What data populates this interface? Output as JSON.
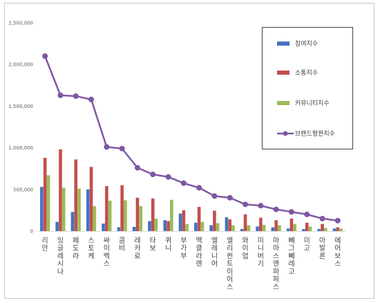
{
  "chart_data": {
    "type": "bar",
    "categories": [
      "리안",
      "잉글레시나",
      "페도라",
      "스토케",
      "싸이벡스",
      "콤비",
      "레카로",
      "타보",
      "퀴니",
      "부가부",
      "맥클라렌",
      "엘레니어",
      "엘리펀트이어스",
      "와이업",
      "미니버기",
      "마마스앤파파스",
      "뻬그뻬레고",
      "미고",
      "아발론",
      "에어보스"
    ],
    "series": [
      {
        "name": "참여지수",
        "color": "#4472c4",
        "values": [
          530000,
          110000,
          230000,
          500000,
          90000,
          45000,
          50000,
          120000,
          130000,
          210000,
          100000,
          70000,
          165000,
          25000,
          55000,
          45000,
          30000,
          25000,
          25000,
          30000
        ]
      },
      {
        "name": "소통지수",
        "color": "#c0504d",
        "values": [
          880000,
          980000,
          860000,
          770000,
          540000,
          550000,
          400000,
          390000,
          120000,
          250000,
          290000,
          245000,
          140000,
          200000,
          160000,
          130000,
          150000,
          100000,
          85000,
          45000
        ]
      },
      {
        "name": "커뮤니티지수",
        "color": "#9bbb59",
        "values": [
          670000,
          520000,
          510000,
          300000,
          365000,
          370000,
          300000,
          150000,
          375000,
          85000,
          110000,
          95000,
          70000,
          70000,
          75000,
          70000,
          85000,
          55000,
          35000,
          30000
        ]
      },
      {
        "name": "브랜드평판지수",
        "color": "#7e56a4",
        "type": "line",
        "values": [
          2100000,
          1630000,
          1620000,
          1580000,
          1010000,
          990000,
          760000,
          680000,
          650000,
          575000,
          520000,
          420000,
          400000,
          320000,
          305000,
          260000,
          230000,
          200000,
          150000,
          125000
        ]
      }
    ],
    "yticks": [
      "0",
      "500,000",
      "1,000,000",
      "1,500,000",
      "2,000,000",
      "2,500,000"
    ],
    "ylim": [
      0,
      2500000
    ],
    "grid": false,
    "legend_position": "top-right"
  }
}
